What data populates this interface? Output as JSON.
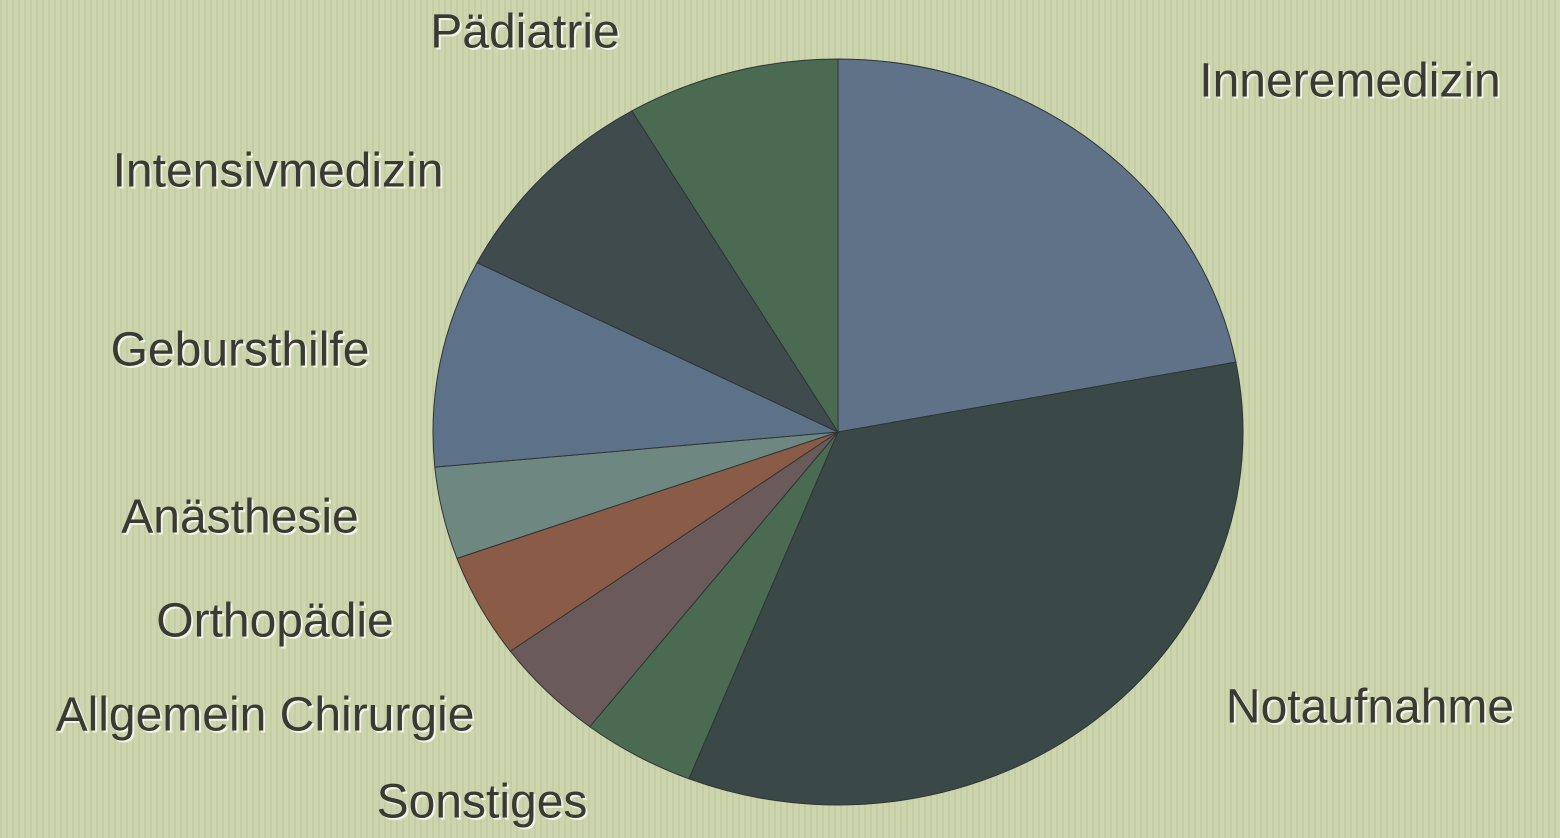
{
  "chart_data": {
    "type": "pie",
    "categories": [
      "Inneremedizin",
      "Notaufnahme",
      "Sonstiges",
      "Allgemein Chirurgie",
      "Orthopädie",
      "Anästhesie",
      "Gebursthilfe",
      "Intensivmedizin",
      "Pädiatrie"
    ],
    "values": [
      22,
      34,
      4.5,
      4.5,
      4.5,
      4,
      9,
      9,
      8.5
    ],
    "colors": [
      "#5f7287",
      "#3b4848",
      "#4b6a52",
      "#6b5a5a",
      "#8a5c47",
      "#6e8881",
      "#5d7189",
      "#3f4b4d",
      "#4a6b51"
    ]
  }
}
